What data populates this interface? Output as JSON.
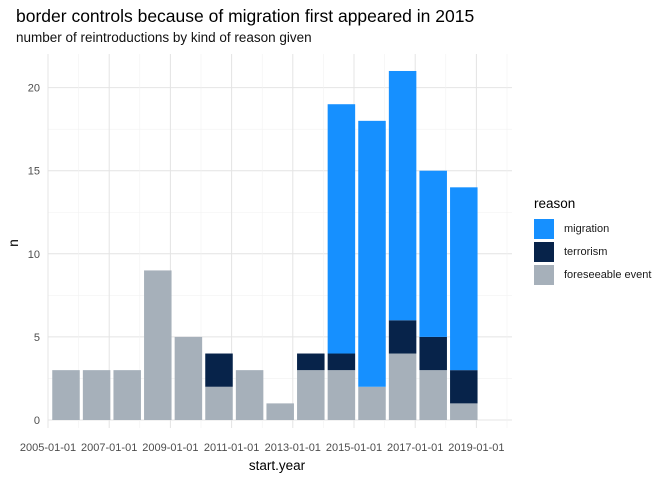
{
  "chart_data": {
    "type": "bar",
    "stacked": true,
    "title": "border controls because of migration first appeared in 2015",
    "subtitle": "number of reintroductions by kind of reason given",
    "xlabel": "start.year",
    "ylabel": "n",
    "ylim": [
      0,
      22
    ],
    "yticks": [
      0,
      5,
      10,
      15,
      20
    ],
    "xticks": [
      "2005-01-01",
      "2007-01-01",
      "2009-01-01",
      "2011-01-01",
      "2013-01-01",
      "2015-01-01",
      "2017-01-01",
      "2019-01-01"
    ],
    "grid": true,
    "legend_position": "right",
    "legend_title": "reason",
    "categories": [
      "2006",
      "2007",
      "2008",
      "2009",
      "2010",
      "2011",
      "2012",
      "2013",
      "2014",
      "2015",
      "2016",
      "2017",
      "2018",
      "2019"
    ],
    "series": [
      {
        "name": "foreseeable event",
        "color": "#a6b0ba",
        "values": [
          3,
          3,
          3,
          9,
          5,
          2,
          3,
          1,
          3,
          3,
          2,
          4,
          3,
          1
        ]
      },
      {
        "name": "terrorism",
        "color": "#07234a",
        "values": [
          0,
          0,
          0,
          0,
          0,
          2,
          0,
          0,
          1,
          1,
          0,
          2,
          2,
          2
        ]
      },
      {
        "name": "migration",
        "color": "#1690ff",
        "values": [
          0,
          0,
          0,
          0,
          0,
          0,
          0,
          0,
          0,
          15,
          16,
          15,
          10,
          11
        ]
      }
    ],
    "legend_order": [
      "migration",
      "terrorism",
      "foreseeable event"
    ]
  }
}
